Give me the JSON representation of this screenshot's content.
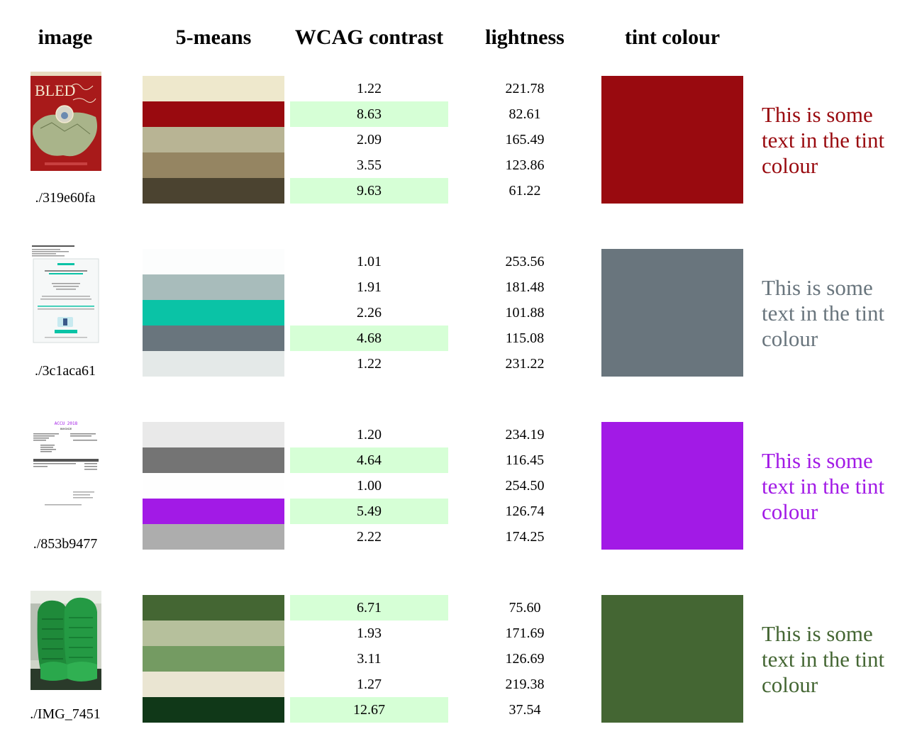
{
  "headers": {
    "image": "image",
    "kmeans": "5-means",
    "contrast": "WCAG contrast",
    "lightness": "lightness",
    "tint": "tint colour"
  },
  "rows": [
    {
      "filename": "./319e60fa",
      "thumb_desc": "BLED poster",
      "thumb_title": "BLED",
      "tint_color": "#990a0f",
      "tint_text": "This is some text in the tint colour",
      "clusters": [
        {
          "color": "#eee8cc",
          "contrast": "1.22",
          "lightness": "221.78",
          "good": false
        },
        {
          "color": "#990a0f",
          "contrast": "8.63",
          "lightness": "82.61",
          "good": true
        },
        {
          "color": "#b8b494",
          "contrast": "2.09",
          "lightness": "165.49",
          "good": false
        },
        {
          "color": "#958562",
          "contrast": "3.55",
          "lightness": "123.86",
          "good": false
        },
        {
          "color": "#4b4330",
          "contrast": "9.63",
          "lightness": "61.22",
          "good": true
        }
      ]
    },
    {
      "filename": "./3c1aca61",
      "thumb_desc": "booking confirmation email",
      "tint_color": "#69757d",
      "tint_text": "This is some text in the tint colour",
      "clusters": [
        {
          "color": "#fcfdfd",
          "contrast": "1.01",
          "lightness": "253.56",
          "good": false
        },
        {
          "color": "#a8bcbb",
          "contrast": "1.91",
          "lightness": "181.48",
          "good": false
        },
        {
          "color": "#0ac3a6",
          "contrast": "2.26",
          "lightness": "101.88",
          "good": false
        },
        {
          "color": "#69757d",
          "contrast": "4.68",
          "lightness": "115.08",
          "good": true
        },
        {
          "color": "#e4e9e8",
          "contrast": "1.22",
          "lightness": "231.22",
          "good": false
        }
      ]
    },
    {
      "filename": "./853b9477",
      "thumb_desc": "invoice document",
      "thumb_logo": "ACCU 2018",
      "thumb_doc": "INVOICE",
      "tint_color": "#a21ae6",
      "tint_text": "This is some text in the tint colour",
      "clusters": [
        {
          "color": "#e9e9e9",
          "contrast": "1.20",
          "lightness": "234.19",
          "good": false
        },
        {
          "color": "#747474",
          "contrast": "4.64",
          "lightness": "116.45",
          "good": true
        },
        {
          "color": "#fefefe",
          "contrast": "1.00",
          "lightness": "254.50",
          "good": false
        },
        {
          "color": "#a21ae6",
          "contrast": "5.49",
          "lightness": "126.74",
          "good": true
        },
        {
          "color": "#adadad",
          "contrast": "2.22",
          "lightness": "174.25",
          "good": false
        }
      ]
    },
    {
      "filename": "./IMG_7451",
      "thumb_desc": "green train seats photo",
      "tint_color": "#446633",
      "tint_text": "This is some text in the tint colour",
      "clusters": [
        {
          "color": "#446633",
          "contrast": "6.71",
          "lightness": "75.60",
          "good": true
        },
        {
          "color": "#b6c09c",
          "contrast": "1.93",
          "lightness": "171.69",
          "good": false
        },
        {
          "color": "#749b62",
          "contrast": "3.11",
          "lightness": "126.69",
          "good": false
        },
        {
          "color": "#eae5d2",
          "contrast": "1.27",
          "lightness": "219.38",
          "good": false
        },
        {
          "color": "#103818",
          "contrast": "12.67",
          "lightness": "37.54",
          "good": true
        }
      ]
    }
  ]
}
